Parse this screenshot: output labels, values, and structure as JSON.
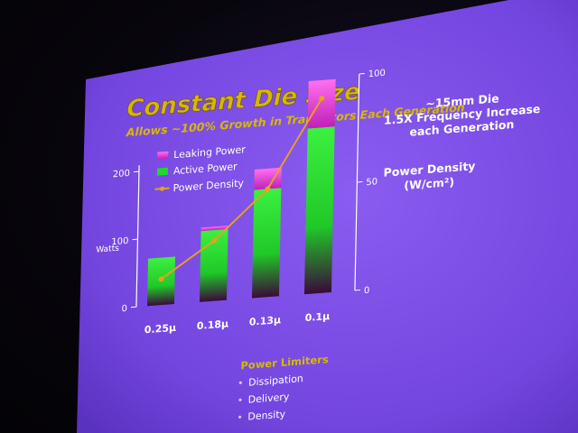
{
  "slide": {
    "title": "Constant Die Size",
    "subtitle": "Allows ~100% Growth in Transistors Each Generation",
    "note_lines": [
      "~15mm Die",
      "1.5X Frequency Increase",
      "each Generation"
    ],
    "right_axis_title": "Power Density",
    "right_axis_unit": "(W/cm²)",
    "left_axis_title": "Watts",
    "limiters_title": "Power Limiters",
    "limiters": [
      "Dissipation",
      "Delivery",
      "Density"
    ]
  },
  "colors": {
    "background": "#7a4ee6",
    "title": "#d8b800",
    "active": "#22d82a",
    "leaking": "#e640d8",
    "density_line": "#e8a020",
    "text": "#ffffff"
  },
  "chart_data": {
    "type": "bar",
    "stacked": true,
    "categories": [
      "0.25μ",
      "0.18μ",
      "0.13μ",
      "0.1μ"
    ],
    "series": [
      {
        "name": "Active Power",
        "values": [
          70,
          105,
          160,
          245
        ]
      },
      {
        "name": "Leaking Power",
        "values": [
          0,
          5,
          30,
          70
        ]
      }
    ],
    "line_series": {
      "name": "Power Density",
      "axis": "right",
      "values": [
        12,
        28,
        50,
        90
      ]
    },
    "left_axis": {
      "label": "Watts",
      "ylim": [
        0,
        320
      ],
      "ticks": [
        0,
        100,
        200
      ]
    },
    "right_axis": {
      "label": "Power Density (W/cm²)",
      "ylim": [
        0,
        100
      ],
      "ticks": [
        0,
        50,
        100
      ]
    },
    "legend": {
      "position": "top-left",
      "entries": [
        "Leaking Power",
        "Active Power",
        "Power Density"
      ]
    },
    "grid": false
  }
}
